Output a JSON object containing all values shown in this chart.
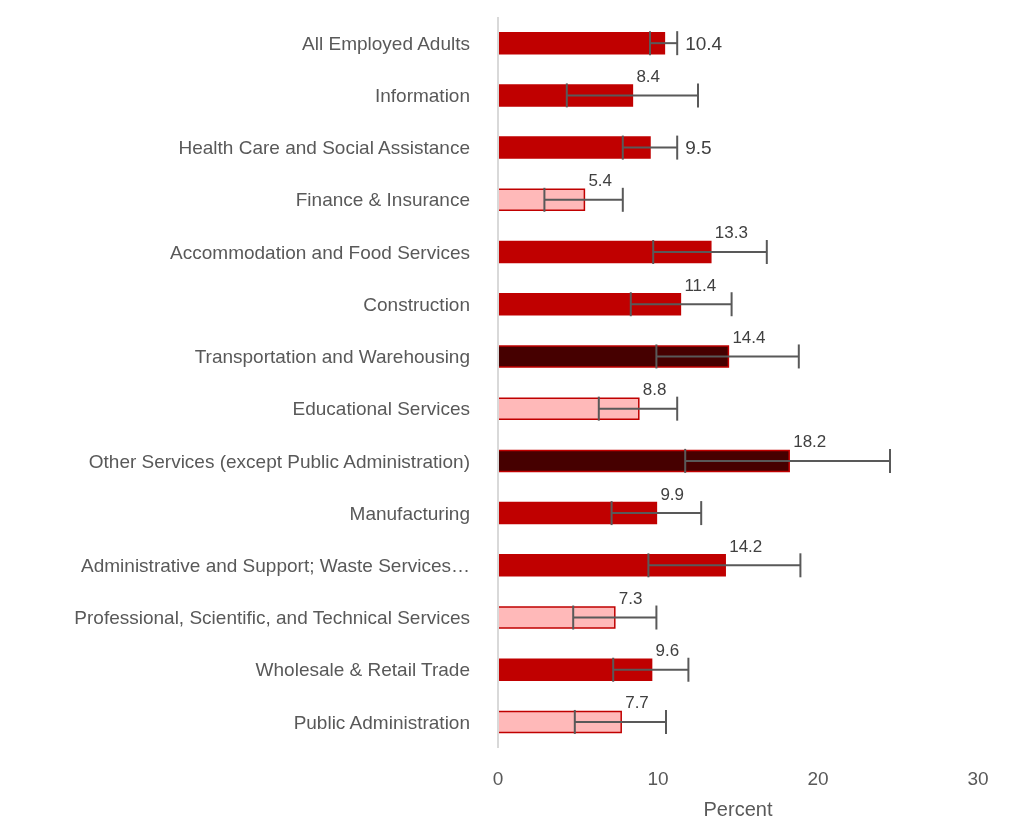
{
  "chart_data": {
    "type": "bar",
    "orientation": "horizontal",
    "xlabel": "Percent",
    "categories": [
      "All Employed Adults",
      "Information",
      "Health Care and Social Assistance",
      "Finance & Insurance",
      "Accommodation and Food Services",
      "Construction",
      "Transportation and Warehousing",
      "Educational Services",
      "Other Services (except Public Administration)",
      "Manufacturing",
      "Administrative and Support; Waste  Services…",
      "Professional, Scientific, and Technical Services",
      "Wholesale & Retail Trade",
      "Public Administration"
    ],
    "values": [
      10.4,
      8.4,
      9.5,
      5.4,
      13.3,
      11.4,
      14.4,
      8.8,
      18.2,
      9.9,
      14.2,
      7.3,
      9.6,
      7.7
    ],
    "colors": [
      "#c00000",
      "#c00000",
      "#c00000",
      "#ffb9b9",
      "#c00000",
      "#c00000",
      "#460000",
      "#ffb9b9",
      "#460000",
      "#c00000",
      "#c00000",
      "#ffb9b9",
      "#c00000",
      "#ffb9b9"
    ],
    "errors": [
      [
        9.5,
        11.2
      ],
      [
        4.3,
        12.5
      ],
      [
        7.8,
        11.2
      ],
      [
        2.9,
        7.8
      ],
      [
        9.7,
        16.8
      ],
      [
        8.3,
        14.6
      ],
      [
        9.9,
        18.8
      ],
      [
        6.3,
        11.2
      ],
      [
        11.7,
        24.5
      ],
      [
        7.1,
        12.7
      ],
      [
        9.4,
        18.9
      ],
      [
        4.7,
        9.9
      ],
      [
        7.2,
        11.9
      ],
      [
        4.8,
        10.5
      ]
    ],
    "xlim": [
      0,
      30
    ],
    "xticks": [
      0,
      10,
      20,
      30
    ],
    "grid": false,
    "legend": false,
    "data_labels": true
  }
}
